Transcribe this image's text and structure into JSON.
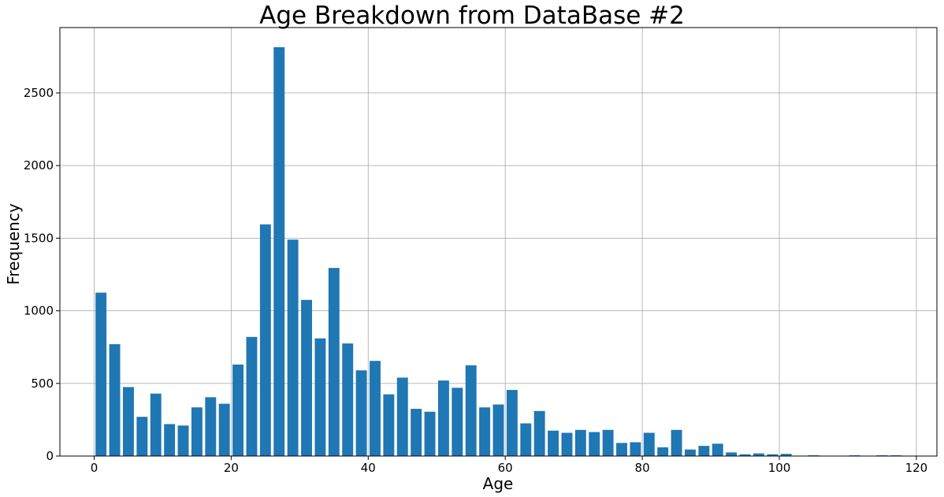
{
  "chart_data": {
    "type": "bar",
    "title": "Age Breakdown from DataBase #2",
    "xlabel": "Age",
    "ylabel": "Frequency",
    "xlim": [
      -5,
      123
    ],
    "ylim": [
      0,
      2950
    ],
    "x_ticks": [
      0,
      20,
      40,
      60,
      80,
      100,
      120
    ],
    "y_ticks": [
      0,
      500,
      1000,
      1500,
      2000,
      2500
    ],
    "bar_width": 1.6,
    "grid": true,
    "bar_color": "#1f77b4",
    "x": [
      1,
      3,
      5,
      7,
      9,
      11,
      13,
      15,
      17,
      19,
      21,
      23,
      25,
      27,
      29,
      31,
      33,
      35,
      37,
      39,
      41,
      43,
      45,
      47,
      49,
      51,
      53,
      55,
      57,
      59,
      61,
      63,
      65,
      67,
      69,
      71,
      73,
      75,
      77,
      79,
      81,
      83,
      85,
      87,
      89,
      91,
      93,
      95,
      97,
      99,
      101,
      103,
      105,
      107,
      109,
      111,
      113,
      115,
      117
    ],
    "values": [
      1125,
      770,
      475,
      270,
      430,
      220,
      210,
      335,
      405,
      360,
      630,
      820,
      1595,
      2815,
      1490,
      1075,
      810,
      1295,
      775,
      590,
      655,
      425,
      540,
      325,
      305,
      520,
      470,
      625,
      335,
      355,
      455,
      225,
      310,
      175,
      160,
      180,
      165,
      180,
      90,
      95,
      160,
      60,
      180,
      45,
      70,
      85,
      25,
      12,
      18,
      12,
      15,
      0,
      5,
      0,
      0,
      5,
      0,
      5,
      5
    ]
  }
}
